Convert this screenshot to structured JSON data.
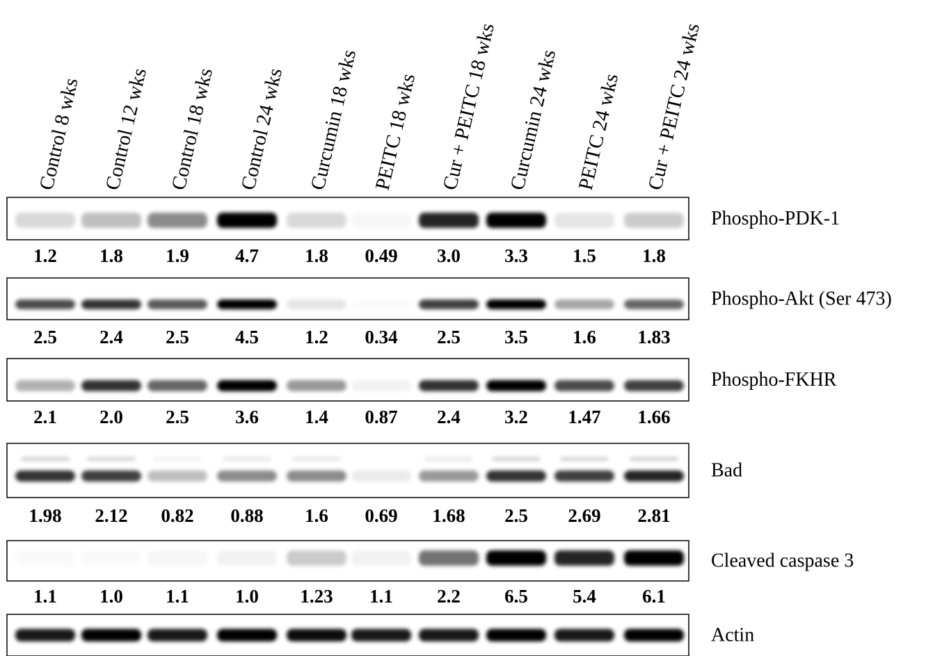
{
  "lanes": [
    "Control 8 wks",
    "Control 12 wks",
    "Control 18 wks",
    "Control 24 wks",
    "Curcumin 18 wks",
    "PEITC 18 wks",
    "Cur + PEITC 18 wks",
    "Curcumin 24 wks",
    "PEITC 24 wks",
    "Cur + PEITC 24 wks"
  ],
  "blots": [
    {
      "name": "Phospho-PDK-1",
      "values": [
        "1.2",
        "1.8",
        "1.9",
        "4.7",
        "1.8",
        "0.49",
        "3.0",
        "3.3",
        "1.5",
        "1.8"
      ]
    },
    {
      "name": "Phospho-Akt (Ser 473)",
      "values": [
        "2.5",
        "2.4",
        "2.5",
        "4.5",
        "1.2",
        "0.34",
        "2.5",
        "3.5",
        "1.6",
        "1.83"
      ]
    },
    {
      "name": "Phospho-FKHR",
      "values": [
        "2.1",
        "2.0",
        "2.5",
        "3.6",
        "1.4",
        "0.87",
        "2.4",
        "3.2",
        "1.47",
        "1.66"
      ]
    },
    {
      "name": "Bad",
      "values": [
        "1.98",
        "2.12",
        "0.82",
        "0.88",
        "1.6",
        "0.69",
        "1.68",
        "2.5",
        "2.69",
        "2.81"
      ]
    },
    {
      "name": "Cleaved caspase 3",
      "values": [
        "1.1",
        "1.0",
        "1.1",
        "1.0",
        "1.23",
        "1.1",
        "2.2",
        "6.5",
        "5.4",
        "6.1"
      ]
    },
    {
      "name": "Actin"
    }
  ]
}
